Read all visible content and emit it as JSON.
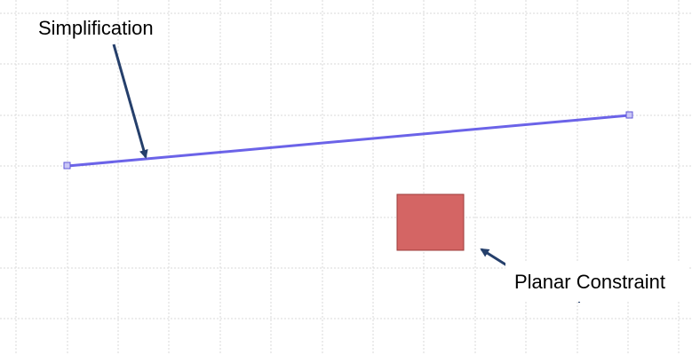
{
  "labels": {
    "simplification": "Simplification",
    "planar_constraint": "Planar Constraint"
  },
  "colors": {
    "line": "#6b63e8",
    "handle_fill": "#c9c6f5",
    "handle_stroke": "#5e55d8",
    "arrow": "#253f6b",
    "rectangle_fill": "#d46564",
    "rectangle_stroke": "#9b3b3a",
    "grid": "#d9d9d9"
  },
  "icons": {
    "line_handles": "square-handle-icon",
    "arrows": "arrow-icon"
  }
}
